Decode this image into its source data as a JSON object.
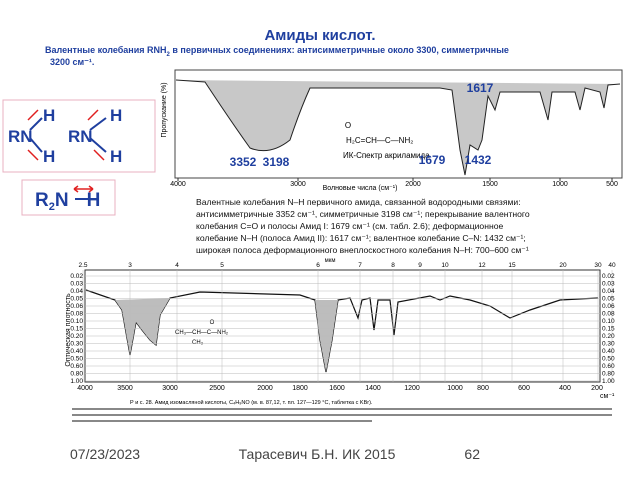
{
  "title": "Амиды кислот.",
  "subtitle": {
    "before": "Валентные колебания RNH",
    "sub": "2",
    "after": " в первичных соединениях: антисимметричные около 3300, симметричные",
    "line2": "3200 см⁻¹."
  },
  "structures": {
    "rn": "RN",
    "h": "H",
    "secondary": {
      "r": "R",
      "sub": "2",
      "n": "N",
      "h": "H"
    }
  },
  "top_spectrum": {
    "y_label": "Пропускание (%)",
    "x_label": "Волновые числа (см⁻¹)",
    "x_ticks": [
      "4000",
      "3000",
      "2000",
      "1500",
      "1000",
      "500"
    ],
    "peaks": [
      "3352",
      "3198",
      "1679",
      "1432",
      "1617"
    ],
    "formula": {
      "o": "O",
      "main": "H₂C=CH—C—NH₂"
    },
    "compound": "ИК-Спектр акриламида"
  },
  "description": [
    "Валентные колебания N–H первичного амида, связанной водородными связями:",
    "антисимметричные 3352 см⁻¹, симметричные 3198 см⁻¹; перекрывание валентного",
    "колебания C=O и полосы Амид I: 1679 см⁻¹ (см. табл. 2.6); деформационное",
    "колебание N–H (полоса Амид II): 1617 см⁻¹; валентное колебание C–N: 1432 см⁻¹;",
    "широкая полоса деформационного внеплоскостного колебания N–H: 700–600 см⁻¹"
  ],
  "bottom_spectrum": {
    "top_unit": "мкм",
    "top_ticks": [
      "2.5",
      "3",
      "4",
      "5",
      "6",
      "7",
      "8",
      "9",
      "10",
      "12",
      "15",
      "20",
      "30",
      "40"
    ],
    "y_ticks": [
      "0.02",
      "0.03",
      "0.04",
      "0.05",
      "0.06",
      "0.08",
      "0.10",
      "0.15",
      "0.20",
      "0.30",
      "0.40",
      "0.50",
      "0.60",
      "0.80",
      "1.00"
    ],
    "x_ticks": [
      "4000",
      "3500",
      "3000",
      "2500",
      "2000",
      "1800",
      "1600",
      "1400",
      "1200",
      "1000",
      "800",
      "600",
      "400",
      "200"
    ],
    "x_unit": "см⁻¹",
    "y_label": "Оптическая плотность",
    "formula": {
      "o": "O",
      "main": "CH₃—CH—C—NH₂",
      "ch3": "CH₃"
    },
    "caption": "Р и с. 28. Амид изомасляной кислоты, C₄H₉NO (м. в. 87,12, т. пл. 127—129 °C, таблетка с KBr)."
  },
  "footer": {
    "date": "07/23/2023",
    "author": "Тарасевич Б.Н. ИК 2015",
    "page": "62"
  }
}
